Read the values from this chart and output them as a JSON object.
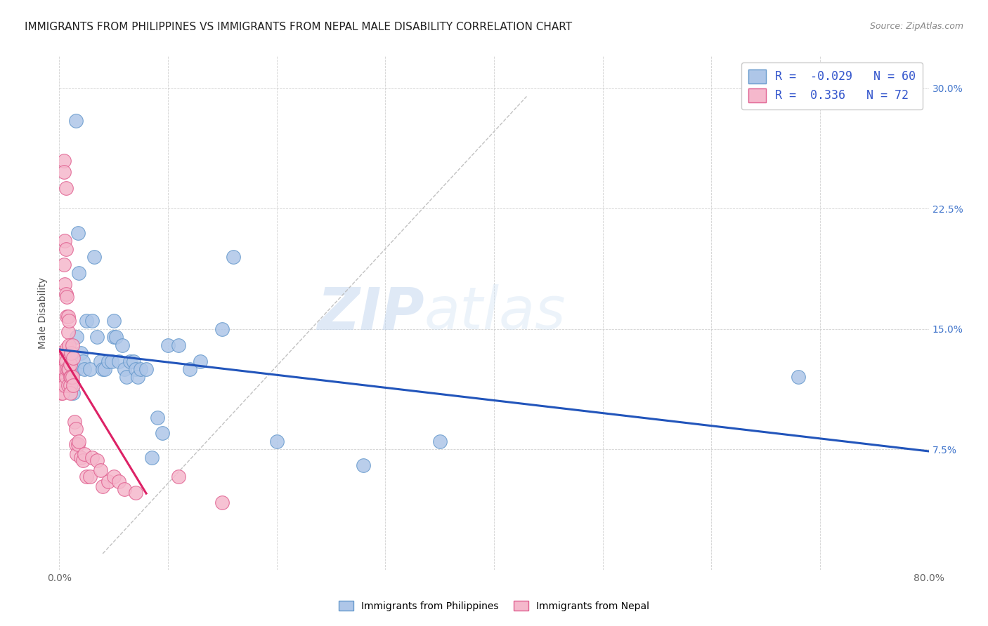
{
  "title": "IMMIGRANTS FROM PHILIPPINES VS IMMIGRANTS FROM NEPAL MALE DISABILITY CORRELATION CHART",
  "source": "Source: ZipAtlas.com",
  "ylabel": "Male Disability",
  "xlim": [
    0.0,
    0.8
  ],
  "ylim": [
    0.0,
    0.32
  ],
  "xticks": [
    0.0,
    0.1,
    0.2,
    0.3,
    0.4,
    0.5,
    0.6,
    0.7,
    0.8
  ],
  "xticklabels": [
    "0.0%",
    "",
    "",
    "",
    "",
    "",
    "",
    "",
    "80.0%"
  ],
  "yticks_right": [
    0.0,
    0.075,
    0.15,
    0.225,
    0.3
  ],
  "yticklabels_right": [
    "",
    "7.5%",
    "15.0%",
    "22.5%",
    "30.0%"
  ],
  "grid_color": "#cccccc",
  "background_color": "#ffffff",
  "philippines_R": -0.029,
  "philippines_N": 60,
  "nepal_R": 0.336,
  "nepal_N": 72,
  "philippines_color": "#aec6e8",
  "philippines_edge": "#6699cc",
  "nepal_color": "#f5b8cc",
  "nepal_edge": "#e06090",
  "philippines_line_color": "#2255bb",
  "nepal_line_color": "#dd2266",
  "philippines_x": [
    0.002,
    0.003,
    0.003,
    0.004,
    0.005,
    0.006,
    0.006,
    0.007,
    0.008,
    0.009,
    0.01,
    0.01,
    0.011,
    0.012,
    0.013,
    0.014,
    0.015,
    0.016,
    0.016,
    0.017,
    0.018,
    0.02,
    0.022,
    0.023,
    0.025,
    0.028,
    0.03,
    0.032,
    0.035,
    0.038,
    0.04,
    0.042,
    0.045,
    0.048,
    0.05,
    0.05,
    0.052,
    0.055,
    0.058,
    0.06,
    0.062,
    0.065,
    0.068,
    0.07,
    0.072,
    0.075,
    0.08,
    0.085,
    0.09,
    0.095,
    0.1,
    0.11,
    0.12,
    0.13,
    0.15,
    0.16,
    0.2,
    0.28,
    0.35,
    0.68
  ],
  "philippines_y": [
    0.13,
    0.128,
    0.125,
    0.13,
    0.13,
    0.12,
    0.115,
    0.118,
    0.125,
    0.122,
    0.128,
    0.135,
    0.12,
    0.117,
    0.11,
    0.125,
    0.28,
    0.145,
    0.125,
    0.21,
    0.185,
    0.135,
    0.13,
    0.125,
    0.155,
    0.125,
    0.155,
    0.195,
    0.145,
    0.13,
    0.125,
    0.125,
    0.13,
    0.13,
    0.155,
    0.145,
    0.145,
    0.13,
    0.14,
    0.125,
    0.12,
    0.13,
    0.13,
    0.125,
    0.12,
    0.125,
    0.125,
    0.07,
    0.095,
    0.085,
    0.14,
    0.14,
    0.125,
    0.13,
    0.15,
    0.195,
    0.08,
    0.065,
    0.08,
    0.12
  ],
  "nepal_x": [
    0.001,
    0.001,
    0.001,
    0.001,
    0.002,
    0.002,
    0.002,
    0.002,
    0.002,
    0.003,
    0.003,
    0.003,
    0.003,
    0.003,
    0.003,
    0.004,
    0.004,
    0.004,
    0.004,
    0.004,
    0.005,
    0.005,
    0.005,
    0.005,
    0.006,
    0.006,
    0.006,
    0.006,
    0.006,
    0.007,
    0.007,
    0.007,
    0.007,
    0.008,
    0.008,
    0.008,
    0.008,
    0.009,
    0.009,
    0.009,
    0.01,
    0.01,
    0.01,
    0.01,
    0.011,
    0.011,
    0.012,
    0.012,
    0.013,
    0.013,
    0.014,
    0.015,
    0.015,
    0.016,
    0.017,
    0.018,
    0.02,
    0.022,
    0.023,
    0.025,
    0.028,
    0.03,
    0.035,
    0.038,
    0.04,
    0.045,
    0.05,
    0.055,
    0.06,
    0.07,
    0.11,
    0.15
  ],
  "nepal_y": [
    0.135,
    0.128,
    0.125,
    0.12,
    0.13,
    0.125,
    0.122,
    0.115,
    0.11,
    0.13,
    0.128,
    0.125,
    0.12,
    0.115,
    0.11,
    0.255,
    0.248,
    0.19,
    0.13,
    0.125,
    0.205,
    0.178,
    0.132,
    0.115,
    0.238,
    0.2,
    0.172,
    0.13,
    0.12,
    0.17,
    0.158,
    0.138,
    0.125,
    0.158,
    0.148,
    0.125,
    0.115,
    0.155,
    0.14,
    0.125,
    0.128,
    0.12,
    0.115,
    0.11,
    0.135,
    0.12,
    0.14,
    0.12,
    0.132,
    0.115,
    0.092,
    0.088,
    0.078,
    0.072,
    0.078,
    0.08,
    0.07,
    0.068,
    0.072,
    0.058,
    0.058,
    0.07,
    0.068,
    0.062,
    0.052,
    0.055,
    0.058,
    0.055,
    0.05,
    0.048,
    0.058,
    0.042
  ],
  "watermark_zip": "ZIP",
  "watermark_atlas": "atlas",
  "title_fontsize": 11,
  "axis_label_fontsize": 10,
  "tick_fontsize": 10,
  "legend_fontsize": 12,
  "source_fontsize": 9
}
